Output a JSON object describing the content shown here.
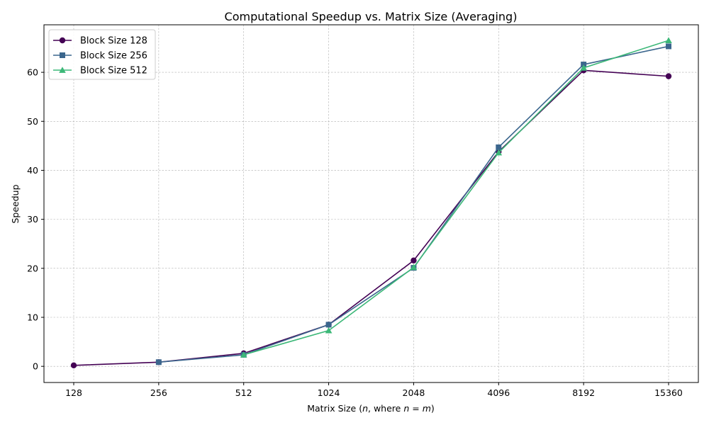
{
  "chart_data": {
    "type": "line",
    "title": "Computational Speedup vs. Matrix Size (Averaging)",
    "xlabel_prefix": "Matrix Size (",
    "xlabel_var_n": "n",
    "xlabel_mid": ", where ",
    "xlabel_eq_n": "n",
    "xlabel_eq_sign": " = ",
    "xlabel_eq_m": "m",
    "xlabel_suffix": ")",
    "ylabel": "Speedup",
    "categories": [
      "128",
      "256",
      "512",
      "1024",
      "2048",
      "4096",
      "8192",
      "15360"
    ],
    "ylim": [
      -3.3,
      69.7
    ],
    "yticks": [
      0,
      10,
      20,
      30,
      40,
      50,
      60
    ],
    "grid": true,
    "legend_position": "top-left",
    "series": [
      {
        "name": "Block Size 128",
        "color": "#440154",
        "marker": "circle",
        "values": [
          0.2,
          0.85,
          2.65,
          8.5,
          21.6,
          43.8,
          60.4,
          59.2
        ]
      },
      {
        "name": "Block Size 256",
        "color": "#3b668d",
        "marker": "square",
        "values": [
          null,
          0.85,
          2.35,
          8.5,
          20.1,
          44.7,
          61.6,
          65.3
        ]
      },
      {
        "name": "Block Size 512",
        "color": "#3cb878",
        "marker": "triangle",
        "values": [
          null,
          null,
          2.35,
          7.3,
          20.2,
          43.6,
          60.9,
          66.5
        ]
      }
    ]
  }
}
